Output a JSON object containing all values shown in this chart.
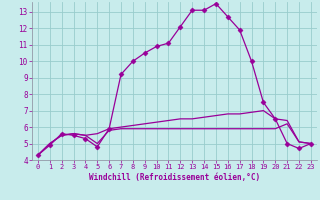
{
  "xlabel": "Windchill (Refroidissement éolien,°C)",
  "background_color": "#c8ecec",
  "line_color": "#990099",
  "grid_color": "#99cccc",
  "xlim": [
    -0.5,
    23.5
  ],
  "ylim": [
    4.0,
    13.6
  ],
  "yticks": [
    4,
    5,
    6,
    7,
    8,
    9,
    10,
    11,
    12,
    13
  ],
  "xticks": [
    0,
    1,
    2,
    3,
    4,
    5,
    6,
    7,
    8,
    9,
    10,
    11,
    12,
    13,
    14,
    15,
    16,
    17,
    18,
    19,
    20,
    21,
    22,
    23
  ],
  "series": [
    {
      "x": [
        0,
        1,
        2,
        3,
        4,
        5,
        6,
        7,
        8,
        9,
        10,
        11,
        12,
        13,
        14,
        15,
        16,
        17,
        18,
        19,
        20,
        21,
        22,
        23
      ],
      "y": [
        4.3,
        4.9,
        5.6,
        5.5,
        5.3,
        4.8,
        5.9,
        9.2,
        10.0,
        10.5,
        10.9,
        11.1,
        12.1,
        13.1,
        13.1,
        13.5,
        12.7,
        11.9,
        10.0,
        7.5,
        6.5,
        5.0,
        4.7,
        5.0
      ],
      "has_markers": true
    },
    {
      "x": [
        0,
        1,
        2,
        3,
        4,
        5,
        6,
        7,
        8,
        9,
        10,
        11,
        12,
        13,
        14,
        15,
        16,
        17,
        18,
        19,
        20,
        21,
        22,
        23
      ],
      "y": [
        4.3,
        5.0,
        5.5,
        5.6,
        5.5,
        5.6,
        5.9,
        6.0,
        6.1,
        6.2,
        6.3,
        6.4,
        6.5,
        6.5,
        6.6,
        6.7,
        6.8,
        6.8,
        6.9,
        7.0,
        6.5,
        6.4,
        5.1,
        5.0
      ],
      "has_markers": false
    },
    {
      "x": [
        0,
        1,
        2,
        3,
        4,
        5,
        6,
        7,
        8,
        9,
        10,
        11,
        12,
        13,
        14,
        15,
        16,
        17,
        18,
        19,
        20,
        21,
        22,
        23
      ],
      "y": [
        4.3,
        5.0,
        5.5,
        5.6,
        5.5,
        5.0,
        5.8,
        5.9,
        5.9,
        5.9,
        5.9,
        5.9,
        5.9,
        5.9,
        5.9,
        5.9,
        5.9,
        5.9,
        5.9,
        5.9,
        5.9,
        6.2,
        5.1,
        5.0
      ],
      "has_markers": false
    }
  ]
}
